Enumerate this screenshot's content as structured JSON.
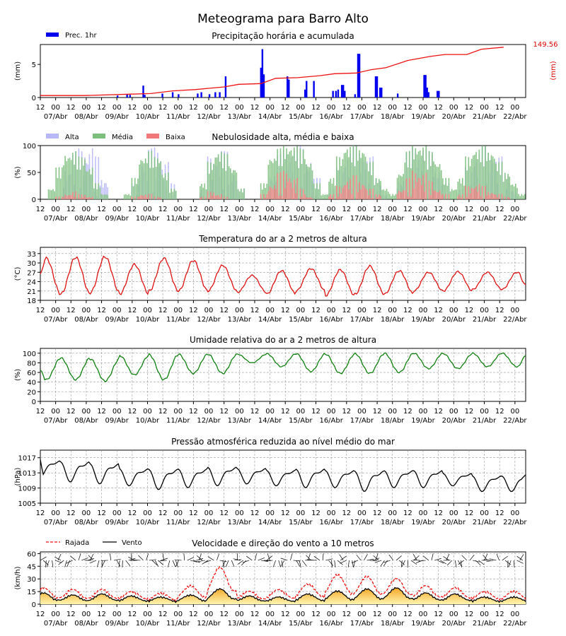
{
  "title": "Meteograma para Barro Alto",
  "hour_labels": [
    "12",
    "00",
    "12",
    "00",
    "12",
    "00",
    "12",
    "00",
    "12",
    "00",
    "12",
    "00",
    "12",
    "00",
    "12",
    "00",
    "12",
    "00",
    "12",
    "00",
    "12",
    "00",
    "12",
    "00",
    "12",
    "00",
    "12",
    "00",
    "12",
    "00",
    "12",
    "00"
  ],
  "day_labels": [
    "07/Abr",
    "08/Abr",
    "09/Abr",
    "10/Abr",
    "11/Abr",
    "12/Abr",
    "13/Abr",
    "14/Abr",
    "15/Abr",
    "16/Abr",
    "17/Abr",
    "18/Abr",
    "19/Abr",
    "20/Abr",
    "21/Abr",
    "22/Abr"
  ],
  "panels": {
    "precip": {
      "title": "Precipitação horária e acumulada",
      "legend": "Prec. 1hr",
      "ylabel": "(mm)",
      "ylabel_right": "(mm)",
      "total_label": "149.56",
      "yticks": [
        "0",
        "5"
      ]
    },
    "cloud": {
      "title": "Nebulosidade alta, média e baixa",
      "legend": [
        "Alta",
        "Média",
        "Baixa"
      ],
      "ylabel": "(%)",
      "yticks": [
        "0",
        "50",
        "100"
      ]
    },
    "temp": {
      "title": "Temperatura do ar a 2 metros de altura",
      "ylabel": "(°C)",
      "yticks": [
        "18",
        "21",
        "24",
        "27",
        "30",
        "33"
      ]
    },
    "rh": {
      "title": "Umidade relativa do ar a 2 metros de altura",
      "ylabel": "(%)",
      "yticks": [
        "0",
        "20",
        "40",
        "60",
        "80",
        "100"
      ]
    },
    "pres": {
      "title": "Pressão atmosférica reduzida ao nível médio do mar",
      "ylabel": "(hPa)",
      "yticks": [
        "1005",
        "1009",
        "1013",
        "1017"
      ]
    },
    "wind": {
      "title": "Velocidade e direção do vento a 10 metros",
      "legend": [
        "Rajada",
        "Vento"
      ],
      "ylabel": "(km/h)",
      "yticks": [
        "0",
        "15",
        "30",
        "45",
        "60"
      ]
    }
  },
  "colors": {
    "precip_bar": "#0000ee",
    "accum_line": "#ee1111",
    "cloud_high": "#b8b8f8",
    "cloud_mid": "#7cbf7c",
    "cloud_low": "#f07a7a",
    "temp": "#e01010",
    "rh": "#108010",
    "pres": "#000000",
    "gust": "#ee1111",
    "wind": "#000000",
    "wind_fill_top": "#f5a623",
    "wind_fill_bottom": "#fff5b0"
  },
  "chart_data": [
    {
      "type": "bar",
      "title": "Precipitação horária e acumulada",
      "ylabel": "(mm)",
      "ylim": [
        0,
        8
      ],
      "hourly_mm": [
        {
          "x_hour": 105,
          "v": 0.3
        },
        {
          "x_hour": 118,
          "v": 0.5
        },
        {
          "x_hour": 122,
          "v": 0.4
        },
        {
          "x_hour": 140,
          "v": 1.8
        },
        {
          "x_hour": 142,
          "v": 0.4
        },
        {
          "x_hour": 166,
          "v": 0.6
        },
        {
          "x_hour": 180,
          "v": 0.8
        },
        {
          "x_hour": 188,
          "v": 0.5
        },
        {
          "x_hour": 214,
          "v": 0.6
        },
        {
          "x_hour": 219,
          "v": 0.8
        },
        {
          "x_hour": 230,
          "v": 0.5
        },
        {
          "x_hour": 238,
          "v": 0.8
        },
        {
          "x_hour": 244,
          "v": 0.8
        },
        {
          "x_hour": 252,
          "v": 3.2
        },
        {
          "x_hour": 300,
          "v": 4.5
        },
        {
          "x_hour": 302,
          "v": 7.3
        },
        {
          "x_hour": 304,
          "v": 3.5
        },
        {
          "x_hour": 336,
          "v": 3.2
        },
        {
          "x_hour": 338,
          "v": 2.7
        },
        {
          "x_hour": 360,
          "v": 1.2
        },
        {
          "x_hour": 362,
          "v": 2.5
        },
        {
          "x_hour": 372,
          "v": 2.5
        },
        {
          "x_hour": 398,
          "v": 1.0
        },
        {
          "x_hour": 402,
          "v": 1.0
        },
        {
          "x_hour": 405,
          "v": 1.2
        },
        {
          "x_hour": 410,
          "v": 1.9
        },
        {
          "x_hour": 412,
          "v": 1.9
        },
        {
          "x_hour": 414,
          "v": 1.0
        },
        {
          "x_hour": 428,
          "v": 0.5
        },
        {
          "x_hour": 432,
          "v": 6.6
        },
        {
          "x_hour": 434,
          "v": 6.6
        },
        {
          "x_hour": 456,
          "v": 3.2
        },
        {
          "x_hour": 458,
          "v": 3.2
        },
        {
          "x_hour": 462,
          "v": 1.5
        },
        {
          "x_hour": 464,
          "v": 1.5
        },
        {
          "x_hour": 486,
          "v": 0.6
        },
        {
          "x_hour": 522,
          "v": 3.4
        },
        {
          "x_hour": 524,
          "v": 3.4
        },
        {
          "x_hour": 526,
          "v": 1.5
        },
        {
          "x_hour": 528,
          "v": 0.8
        },
        {
          "x_hour": 540,
          "v": 1.0
        },
        {
          "x_hour": 542,
          "v": 1.0
        }
      ],
      "accumulated_mm": [
        [
          0,
          0.3
        ],
        [
          60,
          0.3
        ],
        [
          120,
          0.5
        ],
        [
          150,
          0.6
        ],
        [
          180,
          1.0
        ],
        [
          210,
          1.2
        ],
        [
          230,
          1.4
        ],
        [
          250,
          1.6
        ],
        [
          270,
          2.0
        ],
        [
          300,
          2.1
        ],
        [
          320,
          2.9
        ],
        [
          350,
          3.0
        ],
        [
          380,
          3.3
        ],
        [
          400,
          3.6
        ],
        [
          430,
          3.7
        ],
        [
          450,
          4.2
        ],
        [
          470,
          4.5
        ],
        [
          500,
          5.6
        ],
        [
          530,
          6.2
        ],
        [
          550,
          6.5
        ],
        [
          580,
          6.5
        ],
        [
          600,
          7.3
        ],
        [
          630,
          7.6
        ]
      ],
      "accumulated_total": 149.56
    },
    {
      "type": "bar",
      "title": "Nebulosidade alta, média e baixa",
      "ylabel": "(%)",
      "ylim": [
        0,
        100
      ],
      "series": [
        {
          "name": "Alta"
        },
        {
          "name": "Média"
        },
        {
          "name": "Baixa"
        }
      ],
      "note_values": "hourly percentages per layer",
      "high": [
        0,
        0,
        5,
        60,
        90,
        95,
        100,
        80,
        40,
        0,
        0,
        0,
        30,
        85,
        95,
        100,
        70,
        30,
        0,
        0,
        0,
        20,
        80,
        95,
        90,
        60,
        20,
        0,
        0,
        10,
        50,
        85,
        95,
        100,
        100,
        80,
        40,
        0,
        20,
        60,
        90,
        100,
        95,
        80,
        40,
        10,
        0,
        40,
        90,
        100,
        100,
        90,
        60,
        30,
        0,
        20,
        60,
        90,
        100,
        95,
        80,
        50,
        20,
        0
      ],
      "mid": [
        0,
        20,
        60,
        85,
        90,
        80,
        60,
        30,
        10,
        0,
        0,
        10,
        40,
        80,
        90,
        80,
        50,
        20,
        0,
        0,
        0,
        30,
        70,
        90,
        85,
        60,
        20,
        0,
        0,
        30,
        80,
        95,
        100,
        100,
        95,
        70,
        30,
        10,
        40,
        80,
        100,
        100,
        95,
        70,
        40,
        20,
        10,
        50,
        90,
        100,
        100,
        90,
        70,
        40,
        20,
        40,
        80,
        95,
        100,
        90,
        70,
        50,
        30,
        10
      ],
      "low": [
        0,
        0,
        5,
        10,
        15,
        10,
        5,
        0,
        0,
        0,
        0,
        0,
        5,
        10,
        10,
        5,
        0,
        0,
        0,
        0,
        0,
        5,
        15,
        10,
        5,
        0,
        0,
        0,
        0,
        10,
        30,
        50,
        55,
        40,
        20,
        5,
        0,
        0,
        10,
        25,
        40,
        45,
        35,
        20,
        10,
        0,
        0,
        20,
        40,
        55,
        50,
        35,
        20,
        10,
        0,
        10,
        25,
        30,
        25,
        15,
        10,
        5,
        0,
        0
      ]
    },
    {
      "type": "line",
      "title": "Temperatura do ar a 2 metros de altura",
      "ylabel": "(°C)",
      "ylim": [
        18,
        35
      ],
      "daily_max": [
        31.5,
        31.8,
        32.0,
        29.5,
        31.5,
        30.8,
        29.2,
        26.0,
        27.5,
        28.2,
        27.8,
        29.0,
        27.5,
        27.0,
        27.2,
        27.0
      ],
      "daily_min": [
        20.0,
        20.0,
        20.5,
        20.0,
        21.0,
        21.0,
        21.0,
        20.5,
        20.0,
        21.0,
        19.5,
        20.0,
        20.0,
        21.0,
        21.0,
        21.5
      ],
      "start_value": 26.5,
      "end_value": 23.0
    },
    {
      "type": "line",
      "title": "Umidade relativa do ar a 2 metros de altura",
      "ylabel": "(%)",
      "ylim": [
        0,
        110
      ],
      "daily_max": [
        90,
        90,
        88,
        95,
        97,
        98,
        98,
        98,
        99,
        99,
        98,
        99,
        100,
        100,
        99,
        100
      ],
      "daily_min": [
        45,
        45,
        42,
        55,
        45,
        58,
        58,
        80,
        72,
        62,
        58,
        58,
        60,
        68,
        68,
        72
      ],
      "start_value": 65,
      "end_value": 95
    },
    {
      "type": "line",
      "title": "Pressão atmosférica reduzida ao nível médio do mar",
      "ylabel": "(hPa)",
      "ylim": [
        1005,
        1019
      ],
      "daily_max": [
        1017.0,
        1017.0,
        1016.5,
        1015.0,
        1015.0,
        1015.0,
        1015.5,
        1015.0,
        1014.5,
        1015.0,
        1014.5,
        1014.5,
        1014.5,
        1014.5,
        1013.5,
        1013.0
      ],
      "daily_min": [
        1012.0,
        1010.5,
        1010.0,
        1009.5,
        1008.5,
        1009.0,
        1009.5,
        1010.0,
        1009.5,
        1009.0,
        1009.0,
        1008.0,
        1009.0,
        1009.0,
        1009.5,
        1008.0
      ],
      "start_value": 1016.5,
      "end_value": 1012.5
    },
    {
      "type": "line",
      "title": "Velocidade e direção do vento a 10 metros",
      "ylabel": "(km/h)",
      "ylim": [
        0,
        62
      ],
      "series": [
        {
          "name": "Rajada"
        },
        {
          "name": "Vento"
        }
      ],
      "wind_daily": [
        10,
        8,
        9,
        7,
        6,
        8,
        14,
        7,
        6,
        9,
        12,
        14,
        15,
        10,
        9,
        6
      ],
      "gust_daily": [
        16,
        14,
        14,
        12,
        10,
        18,
        38,
        12,
        14,
        20,
        30,
        28,
        26,
        18,
        16,
        12
      ],
      "arrow_row_value": 52
    }
  ]
}
